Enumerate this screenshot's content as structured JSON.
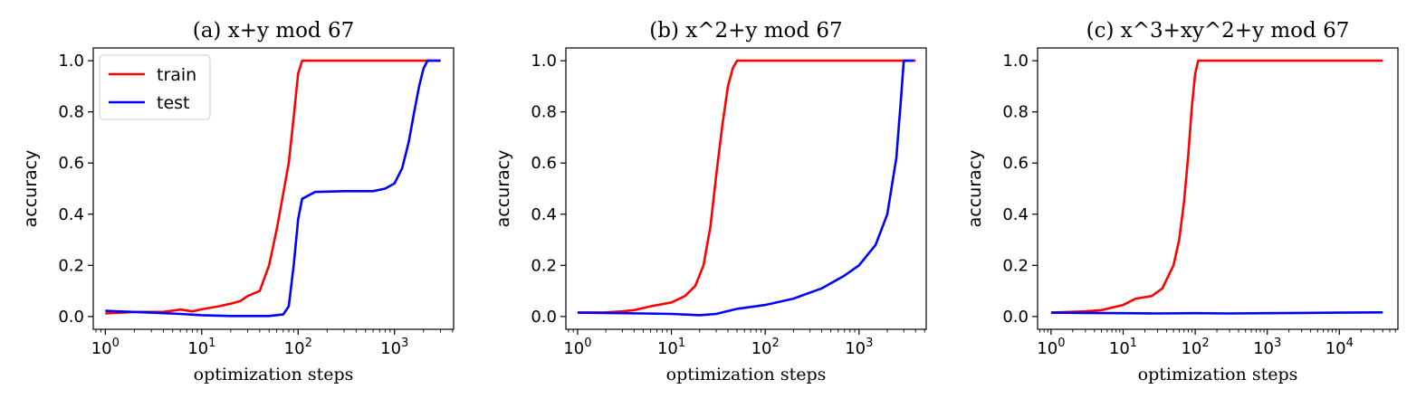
{
  "chart_data": [
    {
      "type": "line",
      "title": "(a) x+y mod 67",
      "xlabel": "optimization steps",
      "ylabel": "accuracy",
      "xscale": "log",
      "xlim": [
        0.75,
        4100
      ],
      "ylim": [
        -0.05,
        1.05
      ],
      "xticks": [
        1,
        10,
        100,
        1000
      ],
      "xtick_labels": [
        {
          "base": "10",
          "exp": "0"
        },
        {
          "base": "10",
          "exp": "1"
        },
        {
          "base": "10",
          "exp": "2"
        },
        {
          "base": "10",
          "exp": "3"
        }
      ],
      "yticks": [
        0.0,
        0.2,
        0.4,
        0.6,
        0.8,
        1.0
      ],
      "ytick_labels": [
        "0.0",
        "0.2",
        "0.4",
        "0.6",
        "0.8",
        "1.0"
      ],
      "legend": {
        "placement": "upper-left",
        "entries": [
          "train",
          "test"
        ]
      },
      "series": [
        {
          "name": "train",
          "color": "#ff0000",
          "points": [
            [
              1,
              0.012
            ],
            [
              2,
              0.018
            ],
            [
              4,
              0.018
            ],
            [
              6,
              0.027
            ],
            [
              8,
              0.02
            ],
            [
              10,
              0.028
            ],
            [
              15,
              0.04
            ],
            [
              20,
              0.05
            ],
            [
              25,
              0.06
            ],
            [
              30,
              0.08
            ],
            [
              40,
              0.1
            ],
            [
              50,
              0.2
            ],
            [
              60,
              0.34
            ],
            [
              70,
              0.48
            ],
            [
              80,
              0.6
            ],
            [
              90,
              0.78
            ],
            [
              100,
              0.95
            ],
            [
              110,
              1.0
            ],
            [
              3000,
              1.0
            ]
          ]
        },
        {
          "name": "test",
          "color": "#0000ff",
          "points": [
            [
              1,
              0.022
            ],
            [
              3,
              0.015
            ],
            [
              6,
              0.01
            ],
            [
              10,
              0.005
            ],
            [
              20,
              0.002
            ],
            [
              50,
              0.002
            ],
            [
              70,
              0.008
            ],
            [
              80,
              0.04
            ],
            [
              90,
              0.2
            ],
            [
              100,
              0.38
            ],
            [
              110,
              0.46
            ],
            [
              150,
              0.487
            ],
            [
              300,
              0.49
            ],
            [
              600,
              0.49
            ],
            [
              800,
              0.5
            ],
            [
              1000,
              0.52
            ],
            [
              1200,
              0.58
            ],
            [
              1400,
              0.68
            ],
            [
              1600,
              0.8
            ],
            [
              1800,
              0.9
            ],
            [
              2000,
              0.97
            ],
            [
              2200,
              1.0
            ],
            [
              3000,
              1.0
            ]
          ]
        }
      ]
    },
    {
      "type": "line",
      "title": "(b) x^2+y mod 67",
      "xlabel": "optimization steps",
      "ylabel": "accuracy",
      "xscale": "log",
      "xlim": [
        0.75,
        5200
      ],
      "ylim": [
        -0.05,
        1.05
      ],
      "xticks": [
        1,
        10,
        100,
        1000
      ],
      "xtick_labels": [
        {
          "base": "10",
          "exp": "0"
        },
        {
          "base": "10",
          "exp": "1"
        },
        {
          "base": "10",
          "exp": "2"
        },
        {
          "base": "10",
          "exp": "3"
        }
      ],
      "yticks": [
        0.0,
        0.2,
        0.4,
        0.6,
        0.8,
        1.0
      ],
      "ytick_labels": [
        "0.0",
        "0.2",
        "0.4",
        "0.6",
        "0.8",
        "1.0"
      ],
      "series": [
        {
          "name": "train",
          "color": "#ff0000",
          "points": [
            [
              1,
              0.015
            ],
            [
              2,
              0.016
            ],
            [
              3,
              0.02
            ],
            [
              4,
              0.025
            ],
            [
              6,
              0.04
            ],
            [
              10,
              0.055
            ],
            [
              14,
              0.08
            ],
            [
              18,
              0.12
            ],
            [
              22,
              0.2
            ],
            [
              26,
              0.35
            ],
            [
              30,
              0.55
            ],
            [
              35,
              0.75
            ],
            [
              40,
              0.9
            ],
            [
              45,
              0.97
            ],
            [
              50,
              1.0
            ],
            [
              4000,
              1.0
            ]
          ]
        },
        {
          "name": "test",
          "color": "#0000ff",
          "points": [
            [
              1,
              0.015
            ],
            [
              5,
              0.012
            ],
            [
              10,
              0.01
            ],
            [
              20,
              0.005
            ],
            [
              30,
              0.01
            ],
            [
              50,
              0.03
            ],
            [
              100,
              0.045
            ],
            [
              200,
              0.07
            ],
            [
              400,
              0.11
            ],
            [
              700,
              0.16
            ],
            [
              1000,
              0.2
            ],
            [
              1500,
              0.28
            ],
            [
              2000,
              0.4
            ],
            [
              2500,
              0.62
            ],
            [
              2800,
              0.85
            ],
            [
              3000,
              1.0
            ],
            [
              3800,
              1.0
            ]
          ]
        }
      ]
    },
    {
      "type": "line",
      "title": "(c) x^3+xy^2+y mod 67",
      "xlabel": "optimization steps",
      "ylabel": "accuracy",
      "xscale": "log",
      "xlim": [
        0.65,
        65000
      ],
      "ylim": [
        -0.05,
        1.05
      ],
      "xticks": [
        1,
        10,
        100,
        1000,
        10000
      ],
      "xtick_labels": [
        {
          "base": "10",
          "exp": "0"
        },
        {
          "base": "10",
          "exp": "1"
        },
        {
          "base": "10",
          "exp": "2"
        },
        {
          "base": "10",
          "exp": "3"
        },
        {
          "base": "10",
          "exp": "4"
        }
      ],
      "yticks": [
        0.0,
        0.2,
        0.4,
        0.6,
        0.8,
        1.0
      ],
      "ytick_labels": [
        "0.0",
        "0.2",
        "0.4",
        "0.6",
        "0.8",
        "1.0"
      ],
      "series": [
        {
          "name": "train",
          "color": "#ff0000",
          "points": [
            [
              1,
              0.015
            ],
            [
              3,
              0.02
            ],
            [
              5,
              0.025
            ],
            [
              10,
              0.045
            ],
            [
              15,
              0.07
            ],
            [
              25,
              0.08
            ],
            [
              35,
              0.11
            ],
            [
              50,
              0.2
            ],
            [
              60,
              0.3
            ],
            [
              70,
              0.45
            ],
            [
              80,
              0.63
            ],
            [
              90,
              0.82
            ],
            [
              100,
              0.95
            ],
            [
              110,
              1.0
            ],
            [
              40000,
              1.0
            ]
          ]
        },
        {
          "name": "test",
          "color": "#0000ff",
          "points": [
            [
              1,
              0.015
            ],
            [
              3,
              0.014
            ],
            [
              10,
              0.013
            ],
            [
              30,
              0.012
            ],
            [
              100,
              0.013
            ],
            [
              300,
              0.012
            ],
            [
              1000,
              0.013
            ],
            [
              3000,
              0.014
            ],
            [
              10000,
              0.015
            ],
            [
              40000,
              0.016
            ]
          ]
        }
      ]
    }
  ]
}
